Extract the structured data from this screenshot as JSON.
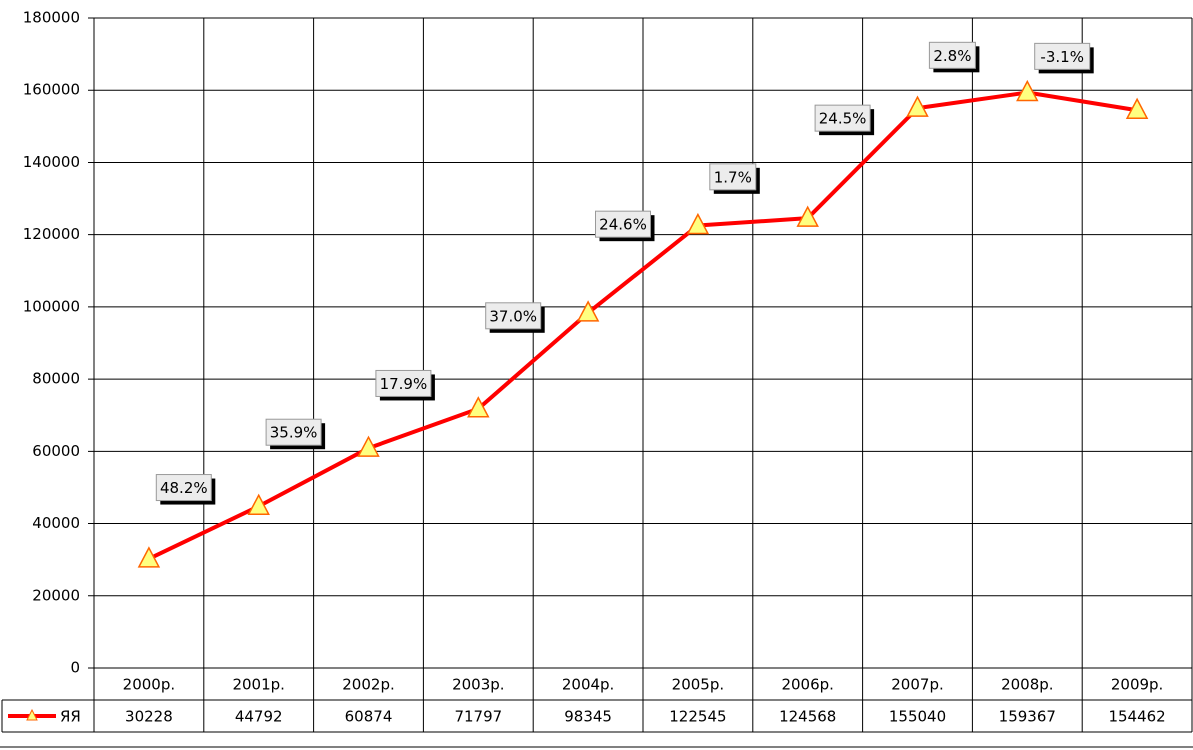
{
  "chart_data": {
    "type": "line",
    "categories": [
      "2000р.",
      "2001р.",
      "2002р.",
      "2003р.",
      "2004р.",
      "2005р.",
      "2006р.",
      "2007р.",
      "2008р.",
      "2009р."
    ],
    "series": [
      {
        "name": "ЯЯ",
        "color": "#ff0000",
        "values": [
          30228,
          44792,
          60874,
          71797,
          98345,
          122545,
          124568,
          155040,
          159367,
          154462
        ]
      }
    ],
    "annotations": [
      null,
      "48.2%",
      "35.9%",
      "17.9%",
      "37.0%",
      "24.6%",
      "1.7%",
      "24.5%",
      "2.8%",
      "-3.1%"
    ],
    "ylim": [
      0,
      180000
    ],
    "yticks": [
      0,
      20000,
      40000,
      60000,
      80000,
      100000,
      120000,
      140000,
      160000,
      180000
    ],
    "grid": true
  }
}
